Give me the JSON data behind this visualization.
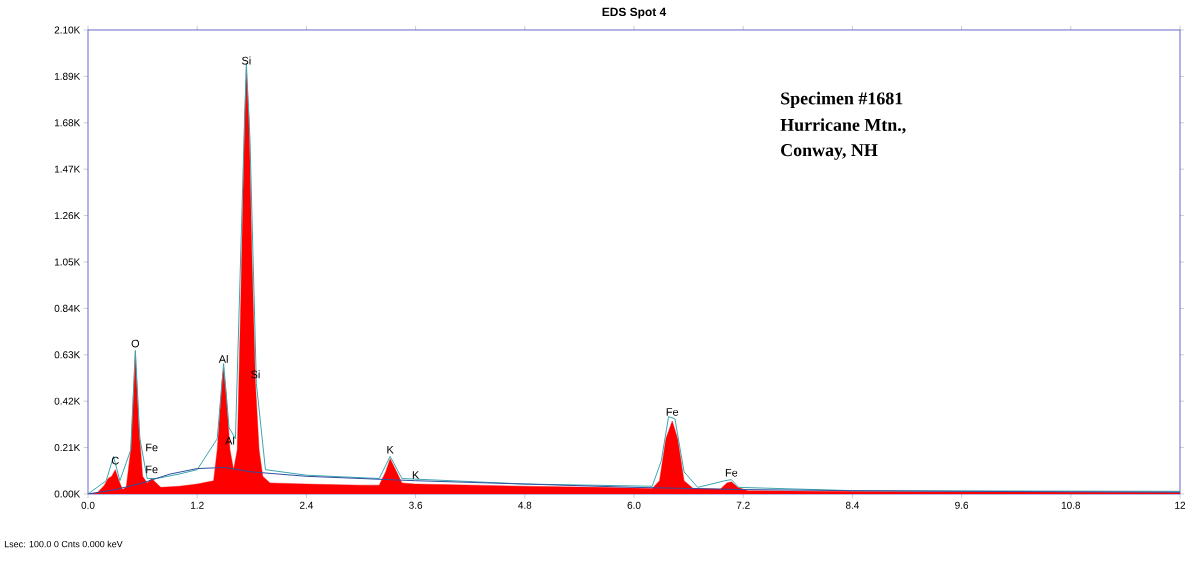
{
  "chart_data": {
    "type": "area",
    "title": "EDS Spot 4",
    "xlim": [
      0,
      12
    ],
    "ylim": [
      0,
      2100
    ],
    "xticks": [
      {
        "value": 0,
        "label": "0.0"
      },
      {
        "value": 1.2,
        "label": "1.2"
      },
      {
        "value": 2.4,
        "label": "2.4"
      },
      {
        "value": 3.6,
        "label": "3.6"
      },
      {
        "value": 4.8,
        "label": "4.8"
      },
      {
        "value": 6.0,
        "label": "6.0"
      },
      {
        "value": 7.2,
        "label": "7.2"
      },
      {
        "value": 8.4,
        "label": "8.4"
      },
      {
        "value": 9.6,
        "label": "9.6"
      },
      {
        "value": 10.8,
        "label": "10.8"
      },
      12
    ],
    "yticks": [
      {
        "value": 0,
        "label": "0.00K"
      },
      {
        "value": 210,
        "label": "0.21K"
      },
      {
        "value": 420,
        "label": "0.42K"
      },
      {
        "value": 630,
        "label": "0.63K"
      },
      {
        "value": 840,
        "label": "0.84K"
      },
      {
        "value": 1050,
        "label": "1.05K"
      },
      {
        "value": 1260,
        "label": "1.26K"
      },
      {
        "value": 1470,
        "label": "1.47K"
      },
      {
        "value": 1680,
        "label": "1.68K"
      },
      {
        "value": 1890,
        "label": "1.89K"
      },
      {
        "value": 2100,
        "label": "2.10K"
      }
    ],
    "grid": false,
    "marker": "none",
    "line_style": "solid",
    "series": [
      {
        "color": "#ff0000",
        "x": [
          0,
          0.1,
          0.18,
          0.22,
          0.26,
          0.3,
          0.34,
          0.38,
          0.42,
          0.47,
          0.52,
          0.56,
          0.6,
          0.65,
          0.7,
          0.75,
          0.8,
          1.0,
          1.2,
          1.38,
          1.42,
          1.47,
          1.49,
          1.52,
          1.56,
          1.6,
          1.64,
          1.68,
          1.72,
          1.74,
          1.77,
          1.8,
          1.84,
          1.88,
          1.92,
          2.0,
          2.4,
          3.0,
          3.2,
          3.27,
          3.32,
          3.38,
          3.45,
          3.6,
          4.0,
          4.8,
          5.6,
          6.2,
          6.28,
          6.35,
          6.42,
          6.48,
          6.55,
          6.65,
          6.95,
          7.02,
          7.07,
          7.14,
          7.25,
          8.0,
          9.6,
          12
        ],
        "values": [
          0,
          5,
          40,
          70,
          80,
          110,
          60,
          20,
          30,
          200,
          640,
          300,
          80,
          50,
          70,
          50,
          30,
          35,
          45,
          60,
          200,
          500,
          570,
          450,
          200,
          110,
          200,
          900,
          1700,
          1920,
          1700,
          1100,
          500,
          200,
          80,
          50,
          45,
          40,
          40,
          100,
          160,
          110,
          50,
          45,
          42,
          35,
          30,
          25,
          60,
          250,
          330,
          250,
          60,
          25,
          22,
          50,
          55,
          30,
          15,
          12,
          10,
          8
        ]
      },
      {
        "type": "line",
        "color": "#3aa6b0",
        "x": [
          0,
          0.2,
          0.28,
          0.35,
          0.47,
          0.52,
          0.57,
          0.65,
          0.75,
          1.0,
          1.2,
          1.42,
          1.49,
          1.55,
          1.62,
          1.7,
          1.74,
          1.78,
          1.85,
          1.95,
          2.4,
          3.2,
          3.32,
          3.45,
          4.8,
          6.2,
          6.3,
          6.38,
          6.45,
          6.55,
          6.7,
          7.0,
          7.07,
          7.15,
          8.4,
          12
        ],
        "values": [
          0,
          60,
          170,
          60,
          200,
          650,
          250,
          70,
          70,
          90,
          110,
          250,
          590,
          300,
          250,
          1400,
          1950,
          1600,
          500,
          110,
          85,
          70,
          170,
          70,
          45,
          35,
          150,
          350,
          340,
          100,
          30,
          60,
          65,
          30,
          15,
          12
        ]
      },
      {
        "type": "line",
        "color": "#2e4fa0",
        "x": [
          0,
          0.3,
          0.6,
          0.9,
          1.2,
          1.5,
          1.8,
          2.4,
          3.0,
          3.6,
          4.8,
          6.0,
          7.2,
          8.4,
          9.6,
          10.8,
          12
        ],
        "values": [
          0,
          20,
          50,
          90,
          115,
          120,
          100,
          80,
          70,
          60,
          45,
          30,
          20,
          15,
          12,
          10,
          8
        ]
      }
    ],
    "annotations": [
      {
        "text": "Si",
        "x": 1.74,
        "y": 1920
      },
      {
        "text": "O",
        "x": 0.52,
        "y": 640
      },
      {
        "text": "Al",
        "x": 1.49,
        "y": 570
      },
      {
        "text": "Si",
        "x": 1.84,
        "y": 500
      },
      {
        "text": "Al",
        "x": 1.56,
        "y": 200
      },
      {
        "text": "Fe",
        "x": 0.7,
        "y": 70
      },
      {
        "text": "C",
        "x": 0.3,
        "y": 110
      },
      {
        "text": "Fe",
        "x": 0.7,
        "y": 70
      },
      {
        "text": "K",
        "x": 3.32,
        "y": 160
      },
      {
        "text": "K",
        "x": 3.6,
        "y": 45
      },
      {
        "text": "Fe",
        "x": 6.42,
        "y": 330
      },
      {
        "text": "Fe",
        "x": 7.07,
        "y": 55
      },
      "Specimen #1681",
      "Hurricane Mtn.,",
      "Conway, NH",
      "Lsec: 100.0 0 Cnts 0.000 keV"
    ]
  }
}
